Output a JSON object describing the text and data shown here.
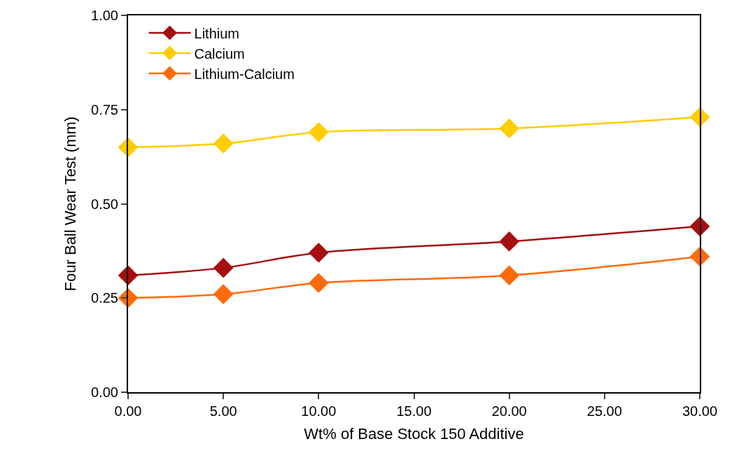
{
  "chart_data": {
    "type": "line",
    "xlabel": "Wt% of Base Stock 150 Additive",
    "ylabel": "Four Ball Wear Test (mm)",
    "x": [
      0,
      5,
      10,
      20,
      30
    ],
    "series": [
      {
        "name": "Lithium",
        "color": "#a50f0f",
        "values": [
          0.31,
          0.33,
          0.37,
          0.4,
          0.44
        ]
      },
      {
        "name": "Calcium",
        "color": "#ffcc00",
        "values": [
          0.65,
          0.66,
          0.69,
          0.7,
          0.73
        ]
      },
      {
        "name": "Lithium-Calcium",
        "color": "#ff6a0a",
        "values": [
          0.25,
          0.26,
          0.29,
          0.31,
          0.36
        ]
      }
    ],
    "xlim": [
      0,
      30
    ],
    "xticks": [
      {
        "value": 0,
        "label": "0.00"
      },
      {
        "value": 5,
        "label": "5.00"
      },
      {
        "value": 10,
        "label": "10.00"
      },
      {
        "value": 15,
        "label": "15.00"
      },
      {
        "value": 20,
        "label": "20.00"
      },
      {
        "value": 25,
        "label": "25.00"
      },
      {
        "value": 30,
        "label": "30.00"
      }
    ],
    "ylim": [
      0,
      1
    ],
    "yticks": [
      {
        "value": 0,
        "label": "0.00"
      },
      {
        "value": 0.25,
        "label": "0.25"
      },
      {
        "value": 0.5,
        "label": "0.50"
      },
      {
        "value": 0.75,
        "label": "0.75"
      },
      {
        "value": 1,
        "label": "1.00"
      }
    ],
    "legend": "top left",
    "marker": "diamond",
    "line_style": "solid"
  }
}
